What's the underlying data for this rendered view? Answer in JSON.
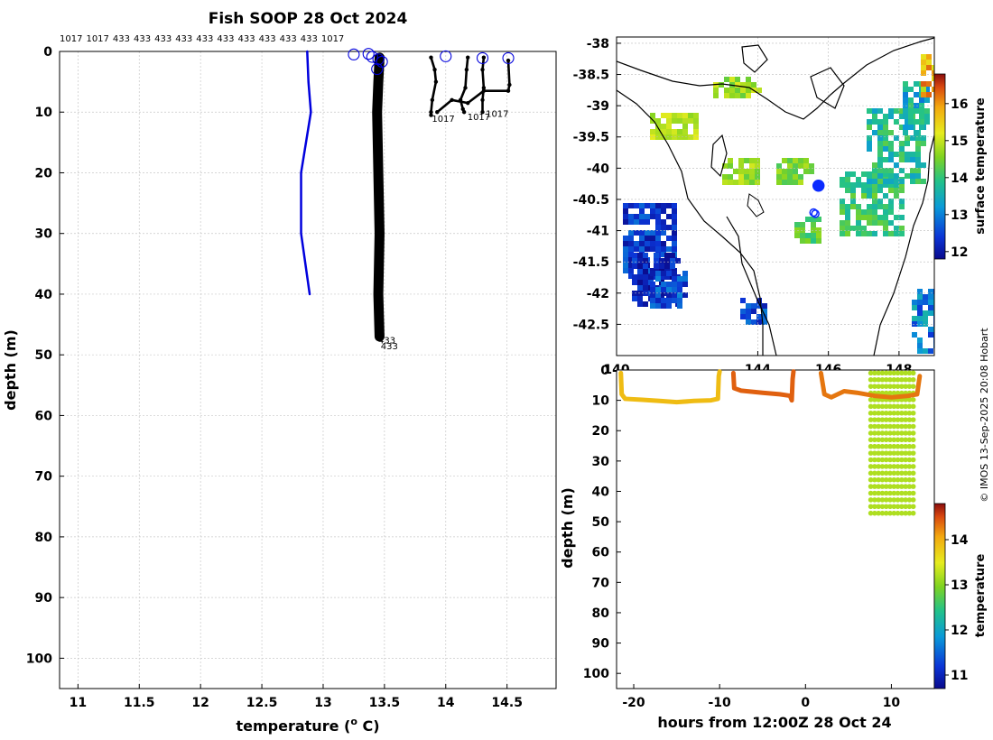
{
  "colors": {
    "profile_blue": "#0000dd",
    "profile_black": "#000000",
    "grid": "#c8c8c8",
    "axis": "#000000",
    "highlight_orange": "#f2a000",
    "highlight_brown": "#cc5f0a",
    "highlight_yellow": "#e8ee20"
  },
  "credit": "© IMOS 13-Sep-2025 20:08 Hobart",
  "chart_data": [
    {
      "id": "profile",
      "type": "line",
      "title": "Fish SOOP 28 Oct 2024",
      "xlabel": "temperature (",
      "xlabel_sup": "o",
      "xlabel_unit": " C)",
      "ylabel": "depth (m)",
      "xlim": [
        10.85,
        14.9
      ],
      "ylim": [
        0,
        105
      ],
      "y_reversed": true,
      "grid": true,
      "xticks": [
        11,
        11.5,
        12,
        12.5,
        13,
        13.5,
        14,
        14.5
      ],
      "xtick_labels": [
        "11",
        "11.5",
        "12",
        "12.5",
        "13",
        "13.5",
        "14",
        "14.5"
      ],
      "yticks": [
        0,
        10,
        20,
        30,
        40,
        50,
        60,
        70,
        80,
        90,
        100
      ],
      "ytick_labels": [
        "0",
        "10",
        "20",
        "30",
        "40",
        "50",
        "60",
        "70",
        "80",
        "90",
        "100"
      ],
      "top_ids": [
        "1017",
        "1017",
        "433",
        "433",
        "433",
        "433",
        "433",
        "433",
        "433",
        "433",
        "433",
        "433",
        "1017"
      ],
      "series": [
        {
          "name": "blue profile",
          "color": "#0000dd",
          "x": [
            12.87,
            12.88,
            12.9,
            12.82,
            12.82,
            12.89
          ],
          "y": [
            0,
            5,
            10,
            20,
            30,
            40
          ]
        },
        {
          "name": "433 profile",
          "color": "#000000",
          "x": [
            13.46,
            13.45,
            13.44,
            13.45,
            13.46,
            13.45,
            13.46
          ],
          "y": [
            1,
            5,
            10,
            20,
            30,
            40,
            47
          ]
        },
        {
          "name": "1017 profile a",
          "color": "#000000",
          "x": [
            13.88,
            13.91,
            13.92,
            13.89,
            13.88,
            13.88
          ],
          "y": [
            1,
            3,
            5,
            8,
            10,
            10.5
          ]
        },
        {
          "name": "1017 profile b",
          "color": "#000000",
          "x": [
            14.18,
            14.17,
            14.16,
            14.12,
            14.14,
            14.15
          ],
          "y": [
            1,
            3,
            6,
            8,
            9.5,
            10
          ]
        },
        {
          "name": "1017 profile c",
          "color": "#000000",
          "x": [
            14.31,
            14.3,
            14.31,
            14.3,
            14.3
          ],
          "y": [
            1,
            3,
            6,
            8,
            10
          ]
        },
        {
          "name": "surface link",
          "color": "#000000",
          "x": [
            13.93,
            14.05,
            14.18,
            14.31,
            14.51,
            14.52,
            14.51
          ],
          "y": [
            10,
            8,
            8.5,
            6.5,
            6.5,
            5.5,
            1.5
          ]
        }
      ],
      "surface_circles": [
        {
          "x": 13.25,
          "y": 0.5
        },
        {
          "x": 13.37,
          "y": 0.4
        },
        {
          "x": 13.4,
          "y": 0.9
        },
        {
          "x": 13.45,
          "y": 1.3
        },
        {
          "x": 13.48,
          "y": 1.7
        },
        {
          "x": 13.44,
          "y": 2.9
        },
        {
          "x": 14.0,
          "y": 0.8
        },
        {
          "x": 14.3,
          "y": 1.1
        },
        {
          "x": 14.51,
          "y": 1.1
        }
      ],
      "annotations": [
        {
          "text": "1017",
          "x": 13.98,
          "y": 11.0
        },
        {
          "text": "1017",
          "x": 14.27,
          "y": 10.7
        },
        {
          "text": "1017",
          "x": 14.42,
          "y": 10.2
        },
        {
          "text": "433",
          "x": 13.52,
          "y": 47.5
        },
        {
          "text": "433",
          "x": 13.54,
          "y": 48.5
        }
      ]
    },
    {
      "id": "map",
      "type": "heatmap",
      "xlim": [
        140,
        149
      ],
      "ylim": [
        -43,
        -37.9
      ],
      "xticks": [
        140,
        144,
        146,
        148
      ],
      "xtick_labels": [
        "140",
        "144",
        "146",
        "148"
      ],
      "yticks": [
        -38,
        -38.5,
        -39,
        -39.5,
        -40,
        -40.5,
        -41,
        -41.5,
        -42,
        -42.5
      ],
      "ytick_labels": [
        "-38",
        "-38.5",
        "-39",
        "-39.5",
        "-40",
        "-40.5",
        "-41",
        "-41.5",
        "-42",
        "-42.5"
      ],
      "colorbar_label": "surface temperature",
      "colorbar_range": [
        11.8,
        16.8
      ],
      "colorbar_ticks": [
        12,
        13,
        14,
        15,
        16
      ],
      "colorbar_tick_labels": [
        "12",
        "13",
        "14",
        "15",
        "16"
      ],
      "track_points": [
        {
          "lon": 145.72,
          "lat": -40.28
        },
        {
          "lon": 145.58,
          "lat": -40.71
        },
        {
          "lon": 145.63,
          "lat": -40.73
        }
      ]
    },
    {
      "id": "timeseries",
      "type": "scatter",
      "xlabel": "hours from 12:00Z 28 Oct 24",
      "ylabel": "depth (m)",
      "xlim": [
        -22,
        15
      ],
      "ylim": [
        0,
        105
      ],
      "y_reversed": true,
      "xticks": [
        -20,
        -10,
        0,
        10
      ],
      "xtick_labels": [
        "-20",
        "-10",
        "0",
        "10"
      ],
      "yticks": [
        0,
        10,
        20,
        30,
        40,
        50,
        60,
        70,
        80,
        90,
        100
      ],
      "ytick_labels": [
        "0",
        "10",
        "20",
        "30",
        "40",
        "50",
        "60",
        "70",
        "80",
        "90",
        "100"
      ],
      "colorbar_label": "temperature",
      "colorbar_range": [
        10.7,
        14.8
      ],
      "colorbar_ticks": [
        11,
        12,
        13,
        14
      ],
      "colorbar_tick_labels": [
        "11",
        "12",
        "13",
        "14"
      ],
      "segments": [
        {
          "name": "segment 1",
          "temp": 13.9,
          "points": [
            [
              -21.5,
              1
            ],
            [
              -21.4,
              8
            ],
            [
              -21,
              9.5
            ],
            [
              -19,
              9.8
            ],
            [
              -17,
              10.2
            ],
            [
              -15,
              10.6
            ],
            [
              -13,
              10.2
            ],
            [
              -11,
              10
            ],
            [
              -10.2,
              9.5
            ],
            [
              -10.1,
              2
            ],
            [
              -10,
              0.5
            ]
          ]
        },
        {
          "name": "segment 2",
          "temp": 14.4,
          "points": [
            [
              -8.4,
              1
            ],
            [
              -8.3,
              6
            ],
            [
              -7.5,
              6.8
            ],
            [
              -5,
              7.5
            ],
            [
              -3,
              8
            ],
            [
              -1.8,
              8.5
            ],
            [
              -1.6,
              10
            ],
            [
              -1.5,
              3
            ],
            [
              -1.4,
              0.5
            ]
          ]
        },
        {
          "name": "segment 3",
          "temp": 14.3,
          "points": [
            [
              1.8,
              1
            ],
            [
              2.2,
              8
            ],
            [
              3,
              9
            ],
            [
              4.5,
              7
            ],
            [
              6,
              7.5
            ],
            [
              8,
              8.5
            ],
            [
              10,
              9
            ],
            [
              12,
              8.5
            ],
            [
              13,
              8
            ],
            [
              13.3,
              2
            ]
          ]
        }
      ],
      "column": {
        "x_from": 7.6,
        "x_to": 12.6,
        "depth_to": 48,
        "temp": 13.2
      }
    }
  ]
}
